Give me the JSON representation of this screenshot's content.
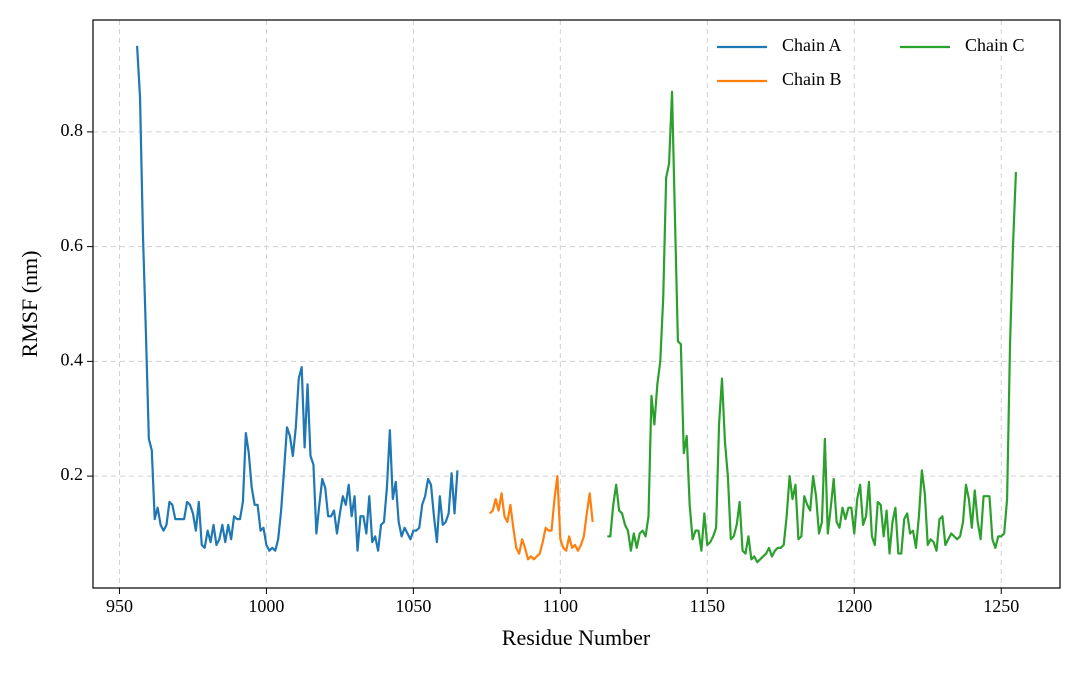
{
  "chart_data": {
    "type": "line",
    "xlabel": "Residue Number",
    "ylabel": "RMSF (nm)",
    "xlim": [
      941,
      1270
    ],
    "ylim": [
      0.005,
      0.995
    ],
    "xticks": [
      950,
      1000,
      1050,
      1100,
      1150,
      1200,
      1250
    ],
    "yticks": [
      0.2,
      0.4,
      0.6,
      0.8
    ],
    "grid": true,
    "legend": "upper right",
    "series": [
      {
        "name": "Chain A",
        "color": "#1f77b4",
        "x": [
          956,
          957,
          958,
          959,
          960,
          961,
          962,
          963,
          964,
          965,
          966,
          967,
          968,
          969,
          970,
          971,
          972,
          973,
          974,
          975,
          976,
          977,
          978,
          979,
          980,
          981,
          982,
          983,
          984,
          985,
          986,
          987,
          988,
          989,
          990,
          991,
          992,
          993,
          994,
          995,
          996,
          997,
          998,
          999,
          1000,
          1001,
          1002,
          1003,
          1004,
          1005,
          1006,
          1007,
          1008,
          1009,
          1010,
          1011,
          1012,
          1013,
          1014,
          1015,
          1016,
          1017,
          1018,
          1019,
          1020,
          1021,
          1022,
          1023,
          1024,
          1025,
          1026,
          1027,
          1028,
          1029,
          1030,
          1031,
          1032,
          1033,
          1034,
          1035,
          1036,
          1037,
          1038,
          1039,
          1040,
          1041,
          1042,
          1043,
          1044,
          1045,
          1046,
          1047,
          1048,
          1049,
          1050,
          1051,
          1052,
          1053,
          1054,
          1055,
          1056,
          1057,
          1058,
          1059,
          1060,
          1061,
          1062,
          1063,
          1064,
          1065
        ],
        "values": [
          0.95,
          0.86,
          0.62,
          0.45,
          0.265,
          0.245,
          0.125,
          0.145,
          0.115,
          0.105,
          0.115,
          0.155,
          0.15,
          0.125,
          0.125,
          0.125,
          0.125,
          0.155,
          0.15,
          0.135,
          0.105,
          0.155,
          0.08,
          0.075,
          0.105,
          0.085,
          0.115,
          0.08,
          0.09,
          0.115,
          0.085,
          0.115,
          0.09,
          0.13,
          0.125,
          0.125,
          0.155,
          0.275,
          0.24,
          0.18,
          0.15,
          0.15,
          0.105,
          0.11,
          0.08,
          0.07,
          0.075,
          0.07,
          0.09,
          0.14,
          0.21,
          0.285,
          0.27,
          0.235,
          0.285,
          0.37,
          0.39,
          0.25,
          0.36,
          0.235,
          0.22,
          0.1,
          0.15,
          0.195,
          0.18,
          0.13,
          0.13,
          0.14,
          0.1,
          0.135,
          0.165,
          0.15,
          0.185,
          0.13,
          0.165,
          0.07,
          0.13,
          0.13,
          0.1,
          0.165,
          0.085,
          0.095,
          0.07,
          0.115,
          0.12,
          0.18,
          0.28,
          0.16,
          0.19,
          0.12,
          0.095,
          0.11,
          0.1,
          0.09,
          0.105,
          0.105,
          0.11,
          0.15,
          0.165,
          0.195,
          0.185,
          0.13,
          0.085,
          0.165,
          0.115,
          0.12,
          0.135,
          0.205,
          0.135,
          0.21
        ]
      },
      {
        "name": "Chain B",
        "color": "#ff7f0e",
        "x": [
          1076,
          1077,
          1078,
          1079,
          1080,
          1081,
          1082,
          1083,
          1084,
          1085,
          1086,
          1087,
          1088,
          1089,
          1090,
          1091,
          1092,
          1093,
          1094,
          1095,
          1096,
          1097,
          1098,
          1099,
          1100,
          1101,
          1102,
          1103,
          1104,
          1105,
          1106,
          1107,
          1108,
          1109,
          1110,
          1111
        ],
        "values": [
          0.135,
          0.14,
          0.16,
          0.14,
          0.17,
          0.13,
          0.12,
          0.15,
          0.11,
          0.075,
          0.065,
          0.09,
          0.075,
          0.055,
          0.06,
          0.055,
          0.06,
          0.065,
          0.085,
          0.11,
          0.105,
          0.105,
          0.16,
          0.2,
          0.09,
          0.075,
          0.07,
          0.095,
          0.075,
          0.08,
          0.07,
          0.08,
          0.095,
          0.135,
          0.17,
          0.12
        ]
      },
      {
        "name": "Chain C",
        "color": "#2ca02c",
        "x": [
          1116,
          1117,
          1118,
          1119,
          1120,
          1121,
          1122,
          1123,
          1124,
          1125,
          1126,
          1127,
          1128,
          1129,
          1130,
          1131,
          1132,
          1133,
          1134,
          1135,
          1136,
          1137,
          1138,
          1139,
          1140,
          1141,
          1142,
          1143,
          1144,
          1145,
          1146,
          1147,
          1148,
          1149,
          1150,
          1151,
          1152,
          1153,
          1154,
          1155,
          1156,
          1157,
          1158,
          1159,
          1160,
          1161,
          1162,
          1163,
          1164,
          1165,
          1166,
          1167,
          1168,
          1169,
          1170,
          1171,
          1172,
          1173,
          1174,
          1175,
          1176,
          1177,
          1178,
          1179,
          1180,
          1181,
          1182,
          1183,
          1184,
          1185,
          1186,
          1187,
          1188,
          1189,
          1190,
          1191,
          1192,
          1193,
          1194,
          1195,
          1196,
          1197,
          1198,
          1199,
          1200,
          1201,
          1202,
          1203,
          1204,
          1205,
          1206,
          1207,
          1208,
          1209,
          1210,
          1211,
          1212,
          1213,
          1214,
          1215,
          1216,
          1217,
          1218,
          1219,
          1220,
          1221,
          1222,
          1223,
          1224,
          1225,
          1226,
          1227,
          1228,
          1229,
          1230,
          1231,
          1232,
          1233,
          1234,
          1235,
          1236,
          1237,
          1238,
          1239,
          1240,
          1241,
          1242,
          1243,
          1244,
          1245,
          1246,
          1247,
          1248,
          1249,
          1250,
          1251,
          1252,
          1253,
          1254,
          1255
        ],
        "values": [
          0.095,
          0.095,
          0.15,
          0.185,
          0.14,
          0.135,
          0.115,
          0.105,
          0.07,
          0.1,
          0.075,
          0.1,
          0.105,
          0.095,
          0.13,
          0.34,
          0.29,
          0.36,
          0.4,
          0.51,
          0.72,
          0.745,
          0.87,
          0.65,
          0.435,
          0.43,
          0.24,
          0.27,
          0.15,
          0.09,
          0.105,
          0.105,
          0.07,
          0.135,
          0.08,
          0.085,
          0.095,
          0.11,
          0.29,
          0.37,
          0.26,
          0.2,
          0.09,
          0.095,
          0.115,
          0.155,
          0.07,
          0.065,
          0.095,
          0.055,
          0.06,
          0.05,
          0.055,
          0.06,
          0.065,
          0.075,
          0.06,
          0.07,
          0.075,
          0.075,
          0.08,
          0.13,
          0.2,
          0.16,
          0.185,
          0.09,
          0.095,
          0.165,
          0.15,
          0.14,
          0.2,
          0.165,
          0.1,
          0.12,
          0.265,
          0.1,
          0.145,
          0.195,
          0.12,
          0.11,
          0.145,
          0.125,
          0.145,
          0.145,
          0.1,
          0.16,
          0.185,
          0.115,
          0.13,
          0.19,
          0.095,
          0.08,
          0.155,
          0.15,
          0.095,
          0.14,
          0.065,
          0.12,
          0.145,
          0.065,
          0.065,
          0.125,
          0.135,
          0.1,
          0.105,
          0.075,
          0.13,
          0.21,
          0.17,
          0.08,
          0.09,
          0.085,
          0.07,
          0.125,
          0.13,
          0.08,
          0.09,
          0.1,
          0.095,
          0.09,
          0.095,
          0.12,
          0.185,
          0.16,
          0.11,
          0.175,
          0.12,
          0.09,
          0.165,
          0.165,
          0.165,
          0.09,
          0.075,
          0.095,
          0.095,
          0.1,
          0.16,
          0.43,
          0.6,
          0.73
        ]
      }
    ]
  }
}
